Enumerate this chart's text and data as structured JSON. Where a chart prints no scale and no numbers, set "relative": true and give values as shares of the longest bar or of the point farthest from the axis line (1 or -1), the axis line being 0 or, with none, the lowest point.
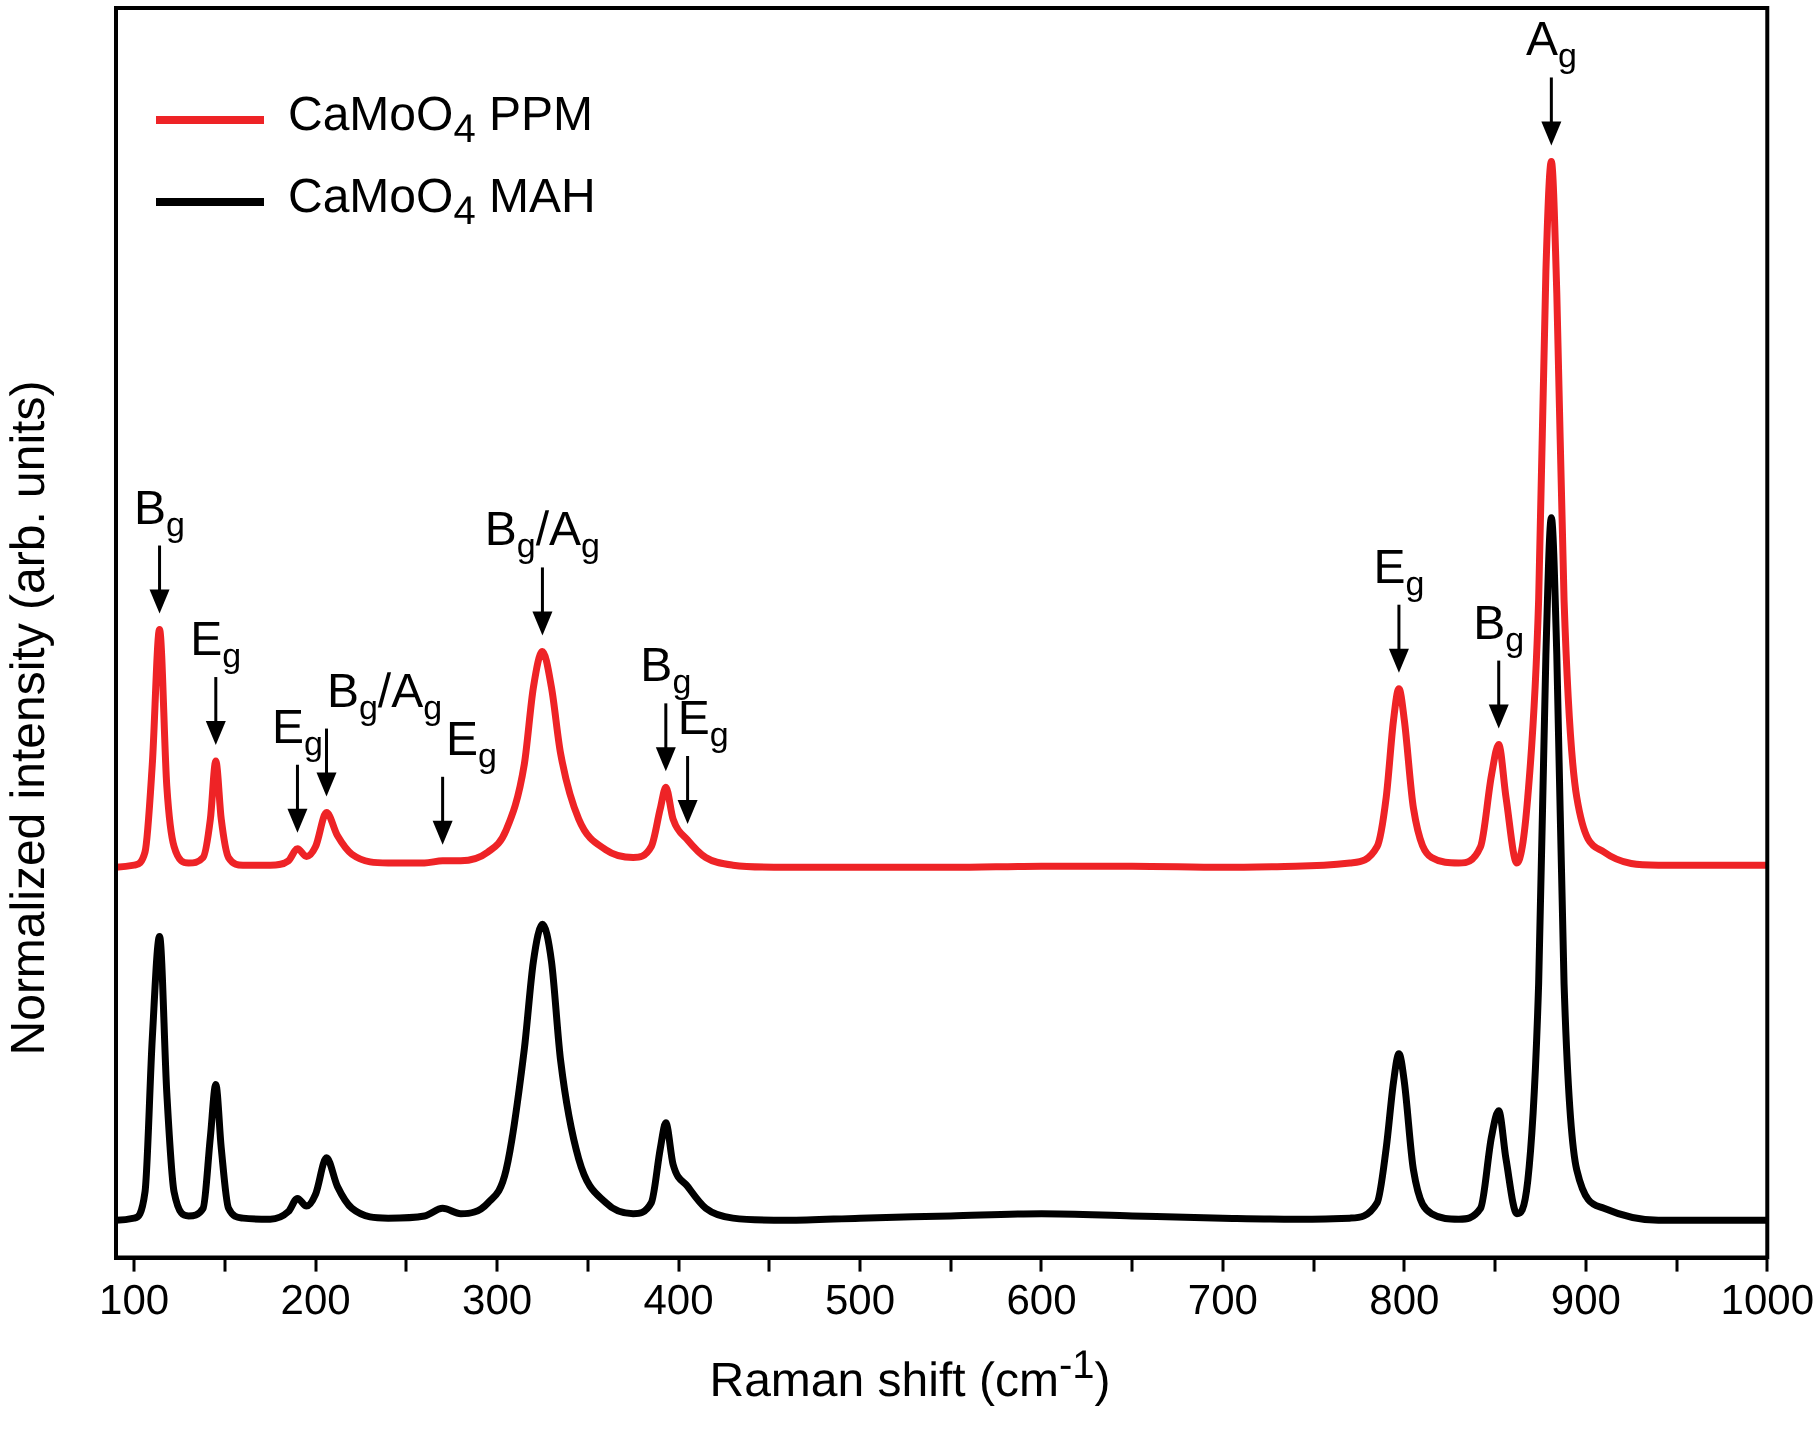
{
  "chart_data": {
    "type": "line",
    "relative": true,
    "xlabel": "Raman shift (cm$^{-1}$)",
    "ylabel": "Normalized intensity (arb. units)",
    "legend": "top left",
    "xlim": [
      90,
      1000
    ],
    "xticks": [
      100,
      {
        "value": 150,
        "label": null
      },
      200,
      {
        "value": 250,
        "label": null
      },
      300,
      {
        "value": 350,
        "label": null
      },
      400,
      {
        "value": 450,
        "label": null
      },
      500,
      {
        "value": 550,
        "label": null
      },
      600,
      {
        "value": 650,
        "label": null
      },
      700,
      {
        "value": 750,
        "label": null
      },
      800,
      {
        "value": 850,
        "label": null
      },
      900,
      {
        "value": 950,
        "label": null
      },
      1000
    ],
    "x": [
      90,
      100,
      106,
      110,
      114,
      118,
      122,
      130,
      138,
      142,
      145,
      148,
      152,
      160,
      175,
      185,
      190,
      195,
      200,
      206,
      212,
      220,
      240,
      260,
      270,
      280,
      295,
      305,
      315,
      320,
      325,
      330,
      335,
      345,
      360,
      375,
      385,
      390,
      393,
      397,
      405,
      415,
      430,
      460,
      500,
      550,
      600,
      650,
      700,
      740,
      770,
      785,
      790,
      794,
      797,
      800,
      805,
      815,
      830,
      842,
      848,
      852,
      856,
      862,
      868,
      874,
      878,
      881,
      884,
      888,
      895,
      910,
      940,
      1000
    ],
    "series": [
      {
        "name": "CaMoO$_{4}$ PPM",
        "color": "#ee2326",
        "values": [
          0.356,
          0.358,
          0.37,
          0.45,
          0.573,
          0.43,
          0.375,
          0.36,
          0.365,
          0.4,
          0.453,
          0.4,
          0.365,
          0.358,
          0.358,
          0.362,
          0.373,
          0.366,
          0.375,
          0.406,
          0.385,
          0.368,
          0.36,
          0.36,
          0.362,
          0.362,
          0.37,
          0.39,
          0.45,
          0.52,
          0.553,
          0.52,
          0.46,
          0.4,
          0.372,
          0.365,
          0.375,
          0.41,
          0.429,
          0.4,
          0.381,
          0.365,
          0.358,
          0.356,
          0.356,
          0.356,
          0.357,
          0.357,
          0.356,
          0.357,
          0.36,
          0.375,
          0.42,
          0.49,
          0.519,
          0.49,
          0.41,
          0.365,
          0.36,
          0.375,
          0.44,
          0.468,
          0.42,
          0.36,
          0.42,
          0.6,
          0.9,
          1.0,
          0.88,
          0.6,
          0.42,
          0.37,
          0.358,
          0.358
        ]
      },
      {
        "name": "CaMoO$_{4}$ MAH",
        "color": "#000000",
        "values": [
          0.034,
          0.036,
          0.06,
          0.2,
          0.293,
          0.15,
          0.06,
          0.038,
          0.045,
          0.11,
          0.158,
          0.1,
          0.045,
          0.036,
          0.035,
          0.042,
          0.054,
          0.047,
          0.058,
          0.091,
          0.065,
          0.045,
          0.036,
          0.038,
          0.045,
          0.04,
          0.05,
          0.08,
          0.19,
          0.27,
          0.304,
          0.27,
          0.18,
          0.09,
          0.05,
          0.04,
          0.05,
          0.1,
          0.123,
          0.085,
          0.065,
          0.045,
          0.036,
          0.034,
          0.036,
          0.038,
          0.04,
          0.038,
          0.036,
          0.035,
          0.036,
          0.05,
          0.1,
          0.16,
          0.186,
          0.16,
          0.08,
          0.04,
          0.035,
          0.045,
          0.11,
          0.134,
          0.09,
          0.04,
          0.07,
          0.25,
          0.55,
          0.675,
          0.55,
          0.25,
          0.08,
          0.045,
          0.034,
          0.034
        ]
      }
    ],
    "annotations": [
      {
        "text": "B$_{g}$",
        "x": 114,
        "y": 0.573
      },
      {
        "text": "E$_{g}$",
        "x": 145,
        "y": 0.453
      },
      {
        "text": "E$_{g}$",
        "x": 190,
        "y": 0.373
      },
      {
        "text": "B$_{g}$/A$_{g}$",
        "x": 206,
        "y": 0.406
      },
      {
        "text": "E$_{g}$",
        "x": 270,
        "y": 0.362
      },
      {
        "text": "B$_{g}$/A$_{g}$",
        "x": 325,
        "y": 0.553
      },
      {
        "text": "B$_{g}$",
        "x": 393,
        "y": 0.429
      },
      {
        "text": "E$_{g}$",
        "x": 405,
        "y": 0.381
      },
      {
        "text": "E$_{g}$",
        "x": 797,
        "y": 0.519
      },
      {
        "text": "B$_{g}$",
        "x": 852,
        "y": 0.468
      },
      {
        "text": "A$_{g}$",
        "x": 881,
        "y": 1.0
      }
    ]
  }
}
